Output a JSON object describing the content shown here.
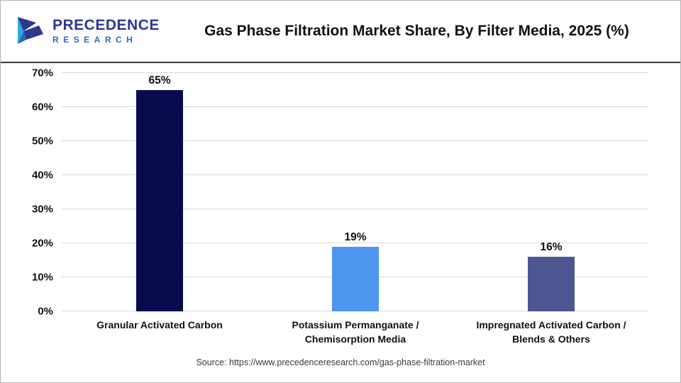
{
  "logo": {
    "line1": "PRECEDENCE",
    "line2": "RESEARCH"
  },
  "source": "Source: https://www.precedenceresearch.com/gas-phase-filtration-market",
  "chart_data": {
    "type": "bar",
    "title": "Gas Phase Filtration Market Share, By Filter Media, 2025 (%)",
    "categories": [
      "Granular Activated Carbon",
      "Potassium Permanganate / Chemisorption Media",
      "Impregnated Activated Carbon / Blends & Others"
    ],
    "values": [
      65,
      19,
      16
    ],
    "value_labels": [
      "65%",
      "19%",
      "16%"
    ],
    "bar_colors": [
      "#070b4e",
      "#4e95ef",
      "#4d5691"
    ],
    "xlabel": "",
    "ylabel": "",
    "ylim": [
      0,
      70
    ],
    "yticks": [
      0,
      10,
      20,
      30,
      40,
      50,
      60,
      70
    ],
    "ytick_labels": [
      "0%",
      "10%",
      "20%",
      "30%",
      "40%",
      "50%",
      "60%",
      "70%"
    ],
    "grid": true,
    "legend": false
  }
}
